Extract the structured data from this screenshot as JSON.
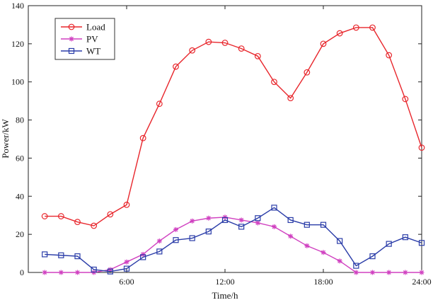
{
  "chart_data": {
    "type": "line",
    "title": "",
    "xlabel": "Time/h",
    "ylabel": "Power/kW",
    "x": [
      1,
      2,
      3,
      4,
      5,
      6,
      7,
      8,
      9,
      10,
      11,
      12,
      13,
      14,
      15,
      16,
      17,
      18,
      19,
      20,
      21,
      22,
      23,
      24
    ],
    "xlim": [
      0,
      24
    ],
    "ylim": [
      0,
      140
    ],
    "xticks": [
      6,
      12,
      18,
      24
    ],
    "xtick_labels": [
      "6:00",
      "12:00",
      "18:00",
      "24:00"
    ],
    "yticks": [
      0,
      20,
      40,
      60,
      80,
      100,
      120,
      140
    ],
    "ytick_labels": [
      "0",
      "20",
      "40",
      "60",
      "80",
      "100",
      "120",
      "140"
    ],
    "grid": false,
    "legend_position": "top-left",
    "series": [
      {
        "name": "Load",
        "color": "#e8262c",
        "marker": "circle",
        "values": [
          29.5,
          29.5,
          26.5,
          24.5,
          30.5,
          35.5,
          70.5,
          88.5,
          108,
          116.5,
          121,
          120.5,
          117.5,
          113.5,
          100,
          91.5,
          105,
          120,
          125.5,
          128.5,
          128.5,
          114,
          91,
          65.5
        ]
      },
      {
        "name": "PV",
        "color": "#d040c0",
        "marker": "star",
        "values": [
          0,
          0,
          0,
          0,
          1.5,
          5.5,
          9.5,
          16.5,
          22.5,
          27,
          28.5,
          29,
          27.5,
          26,
          24,
          19,
          14,
          10.5,
          6,
          0,
          0,
          0,
          0,
          0
        ]
      },
      {
        "name": "WT",
        "color": "#2a3ca8",
        "marker": "square",
        "values": [
          9.5,
          9,
          8.5,
          1.5,
          0.5,
          2,
          8,
          11,
          17,
          18,
          21.5,
          27.5,
          24,
          28.5,
          34,
          27.5,
          25,
          25,
          16.5,
          3.5,
          8.5,
          15,
          18.5,
          15.5
        ]
      }
    ]
  }
}
